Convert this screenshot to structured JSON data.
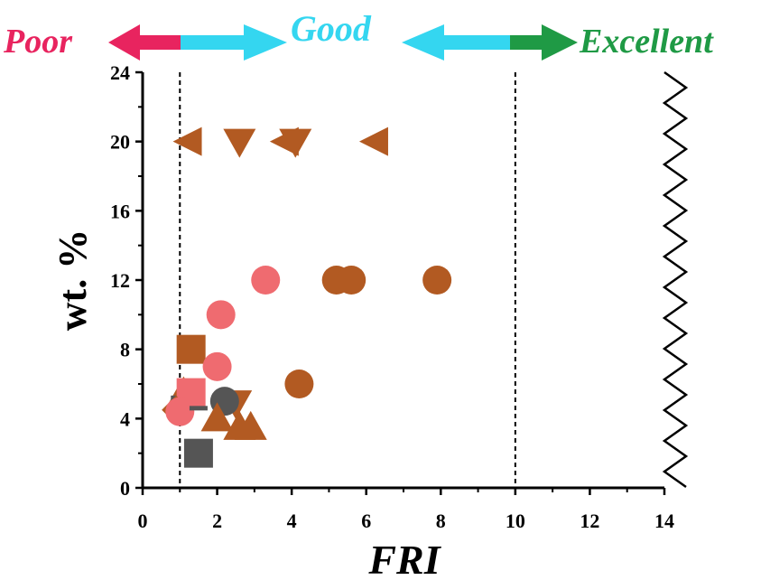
{
  "bands": {
    "poor": {
      "label": "Poor",
      "color": "#e8245f"
    },
    "good": {
      "label": "Good",
      "color": "#34d6f0"
    },
    "excellent": {
      "label": "Excellent",
      "color": "#1f9a45"
    }
  },
  "colors": {
    "brown": "#b25a22",
    "pink": "#ef6b70",
    "gray": "#555555"
  },
  "chart_data": {
    "type": "scatter",
    "title": "",
    "xlabel": "FRI",
    "ylabel": "wt. %",
    "xlim": [
      0,
      14
    ],
    "ylim": [
      0,
      24
    ],
    "x_ticks": [
      "0",
      "2",
      "4",
      "6",
      "8",
      "10",
      "12",
      "14"
    ],
    "y_ticks": [
      "0",
      "4",
      "8",
      "12",
      "16",
      "20",
      "24"
    ],
    "reference_lines_x": [
      1,
      10
    ],
    "right_edge": "zigzag axis break",
    "grid": false,
    "points": [
      {
        "x": 1.2,
        "y": 20,
        "marker": "triangle-left",
        "color": "brown"
      },
      {
        "x": 2.6,
        "y": 20,
        "marker": "triangle-down",
        "color": "brown"
      },
      {
        "x": 3.8,
        "y": 20,
        "marker": "triangle-left",
        "color": "brown"
      },
      {
        "x": 4.1,
        "y": 20,
        "marker": "triangle-down",
        "color": "brown"
      },
      {
        "x": 6.2,
        "y": 20,
        "marker": "triangle-left",
        "color": "brown"
      },
      {
        "x": 3.3,
        "y": 12,
        "marker": "circle",
        "color": "pink"
      },
      {
        "x": 5.2,
        "y": 12,
        "marker": "circle",
        "color": "brown"
      },
      {
        "x": 5.6,
        "y": 12,
        "marker": "circle",
        "color": "brown"
      },
      {
        "x": 7.9,
        "y": 12,
        "marker": "circle",
        "color": "brown"
      },
      {
        "x": 2.1,
        "y": 10,
        "marker": "circle",
        "color": "pink"
      },
      {
        "x": 1.3,
        "y": 8,
        "marker": "square",
        "color": "brown"
      },
      {
        "x": 2.0,
        "y": 7,
        "marker": "circle",
        "color": "pink"
      },
      {
        "x": 4.2,
        "y": 6,
        "marker": "circle",
        "color": "brown"
      },
      {
        "x": 1.1,
        "y": 5.5,
        "marker": "triangle-up",
        "color": "brown"
      },
      {
        "x": 1.0,
        "y": 5.2,
        "marker": "dash",
        "color": "gray"
      },
      {
        "x": 1.3,
        "y": 5.5,
        "marker": "square",
        "color": "pink"
      },
      {
        "x": 2.5,
        "y": 4.9,
        "marker": "triangle-down",
        "color": "brown"
      },
      {
        "x": 2.2,
        "y": 5.0,
        "marker": "circle",
        "color": "gray"
      },
      {
        "x": 0.9,
        "y": 4.5,
        "marker": "diamond",
        "color": "brown"
      },
      {
        "x": 1.0,
        "y": 4.4,
        "marker": "circle",
        "color": "pink"
      },
      {
        "x": 1.5,
        "y": 4.6,
        "marker": "dash",
        "color": "gray"
      },
      {
        "x": 2.0,
        "y": 4.0,
        "marker": "triangle-up",
        "color": "brown"
      },
      {
        "x": 2.6,
        "y": 3.5,
        "marker": "triangle-up",
        "color": "brown"
      },
      {
        "x": 2.9,
        "y": 3.5,
        "marker": "triangle-up",
        "color": "brown"
      },
      {
        "x": 1.5,
        "y": 2.0,
        "marker": "square",
        "color": "gray"
      }
    ]
  }
}
